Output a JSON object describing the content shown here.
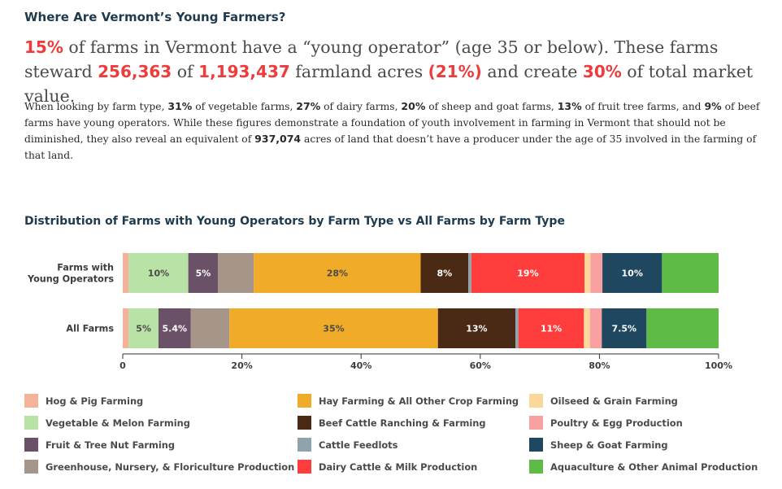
{
  "heading": "Where Are Vermont’s Young Farmers?",
  "headline": {
    "p1": "15%",
    "t1": " of farms in Vermont have a “young operator” (age 35 or below). These farms steward ",
    "p2": "256,363",
    "t2": " of ",
    "p3": "1,193,437",
    "t3": " farmland acres ",
    "p4": "(21%)",
    "t4": " and create ",
    "p5": "30%",
    "t5": " of total market value."
  },
  "body": {
    "a1": "When looking by farm type, ",
    "b1": "31%",
    "a2": " of vegetable farms, ",
    "b2": "27%",
    "a3": " of dairy farms, ",
    "b3": "20%",
    "a4": " of sheep and goat farms, ",
    "b4": "13%",
    "a5": " of fruit tree farms, and ",
    "b5": "9%",
    "a6": " of beef farms have young operators. While these figures demonstrate a foundation of youth involvement in farming in Vermont that should not be diminished, they also reveal an equivalent of ",
    "b6": "937,074",
    "a7": " acres of land that doesn’t have a producer under the age of 35 involved in the farming of that land."
  },
  "chart_data": {
    "type": "bar",
    "orientation": "horizontal",
    "stacked": true,
    "title": "Distribution of Farms with Young Operators by Farm Type vs All Farms by Farm Type",
    "categories": [
      "Farms with Young Operators",
      "All Farms"
    ],
    "xlim": [
      0,
      100
    ],
    "xticks": [
      {
        "value": 0,
        "label": "0"
      },
      {
        "value": 20,
        "label": "20%"
      },
      {
        "value": 40,
        "label": "40%"
      },
      {
        "value": 60,
        "label": "60%"
      },
      {
        "value": 80,
        "label": "80%"
      },
      {
        "value": 100,
        "label": "100%"
      }
    ],
    "series": [
      {
        "name": "Hog & Pig Farming",
        "color": "#f5b29b",
        "values": [
          1,
          1
        ],
        "labels": [
          "",
          ""
        ]
      },
      {
        "name": "Vegetable & Melon Farming",
        "color": "#b9e2a6",
        "values": [
          10,
          5
        ],
        "labels": [
          "10%",
          "5%"
        ]
      },
      {
        "name": "Fruit & Tree Nut Farming",
        "color": "#6b5168",
        "values": [
          5,
          5.4
        ],
        "labels": [
          "5%",
          "5.4%"
        ]
      },
      {
        "name": "Greenhouse, Nursery, & Floriculture Production",
        "color": "#a69689",
        "values": [
          6,
          6.5
        ],
        "labels": [
          "",
          ""
        ]
      },
      {
        "name": "Hay Farming & All Other Crop Farming",
        "color": "#f0ab28",
        "values": [
          28,
          35
        ],
        "labels": [
          "28%",
          "35%"
        ]
      },
      {
        "name": "Beef Cattle Ranching & Farming",
        "color": "#4a2a14",
        "values": [
          8,
          13
        ],
        "labels": [
          "8%",
          "13%"
        ]
      },
      {
        "name": "Cattle Feedlots",
        "color": "#8fa3ad",
        "values": [
          0.5,
          0.5
        ],
        "labels": [
          "",
          ""
        ]
      },
      {
        "name": "Dairy Cattle & Milk Production",
        "color": "#ff3d3d",
        "values": [
          19,
          11
        ],
        "labels": [
          "19%",
          "11%"
        ]
      },
      {
        "name": "Oilseed & Grain Farming",
        "color": "#fad79a",
        "values": [
          1,
          1
        ],
        "labels": [
          "",
          ""
        ]
      },
      {
        "name": "Poultry & Egg Production",
        "color": "#f9a0a0",
        "values": [
          2,
          2
        ],
        "labels": [
          "",
          ""
        ]
      },
      {
        "name": "Sheep & Goat Farming",
        "color": "#1f4760",
        "values": [
          10,
          7.5
        ],
        "labels": [
          "10%",
          "7.5%"
        ]
      },
      {
        "name": "Aquaculture & Other Animal Production",
        "color": "#5dbb46",
        "values": [
          9.5,
          12.1
        ],
        "labels": [
          "",
          ""
        ]
      }
    ],
    "grid": false,
    "legend_position": "bottom"
  }
}
